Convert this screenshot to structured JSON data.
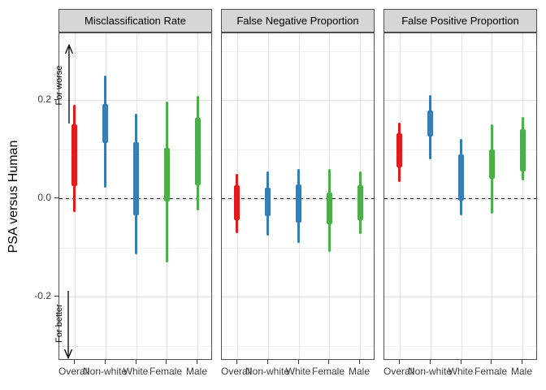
{
  "y_axis": {
    "title": "PSA versus Human",
    "ticks": [
      {
        "label": "0.2",
        "value": 0.2
      },
      {
        "label": "0.0",
        "value": 0.0
      },
      {
        "label": "-0.2",
        "value": -0.2
      }
    ]
  },
  "x_categories": [
    "Overall",
    "Non-white",
    "White",
    "Female",
    "Male"
  ],
  "colors": {
    "red": "#E41A1C",
    "blue": "#377EB8",
    "green": "#4DAF4A"
  },
  "chart_data": [
    {
      "type": "interval",
      "title": "Misclassification Rate",
      "ylabel": "PSA versus Human",
      "ylim": [
        -0.33,
        0.335
      ],
      "yticks": [
        0.2,
        0.0,
        -0.2
      ],
      "grid": true,
      "legend": "none",
      "zero_line": true,
      "annotations": {
        "worse": "For worse",
        "better": "For better"
      },
      "categories": [
        "Overall",
        "Non-white",
        "White",
        "Female",
        "Male"
      ],
      "series": [
        {
          "category": "Overall",
          "color": "#E41A1C",
          "outer": [
            -0.028,
            0.19
          ],
          "inner": [
            0.024,
            0.151
          ]
        },
        {
          "category": "Non-white",
          "color": "#377EB8",
          "outer": [
            0.021,
            0.249
          ],
          "inner": [
            0.112,
            0.192
          ]
        },
        {
          "category": "White",
          "color": "#377EB8",
          "outer": [
            -0.115,
            0.172
          ],
          "inner": [
            -0.035,
            0.114
          ]
        },
        {
          "category": "Female",
          "color": "#4DAF4A",
          "outer": [
            -0.13,
            0.197
          ],
          "inner": [
            -0.006,
            0.102
          ]
        },
        {
          "category": "Male",
          "color": "#4DAF4A",
          "outer": [
            -0.025,
            0.208
          ],
          "inner": [
            0.027,
            0.163
          ]
        }
      ]
    },
    {
      "type": "interval",
      "title": "False Negative Proportion",
      "ylabel": "PSA versus Human",
      "ylim": [
        -0.33,
        0.335
      ],
      "yticks": [
        0.2,
        0.0,
        -0.2
      ],
      "grid": true,
      "legend": "none",
      "zero_line": true,
      "categories": [
        "Overall",
        "Non-white",
        "White",
        "Female",
        "Male"
      ],
      "series": [
        {
          "category": "Overall",
          "color": "#E41A1C",
          "outer": [
            -0.071,
            0.049
          ],
          "inner": [
            -0.044,
            0.027
          ]
        },
        {
          "category": "Non-white",
          "color": "#377EB8",
          "outer": [
            -0.076,
            0.054
          ],
          "inner": [
            -0.036,
            0.022
          ]
        },
        {
          "category": "White",
          "color": "#377EB8",
          "outer": [
            -0.091,
            0.06
          ],
          "inner": [
            -0.05,
            0.029
          ]
        },
        {
          "category": "Female",
          "color": "#4DAF4A",
          "outer": [
            -0.11,
            0.059
          ],
          "inner": [
            -0.053,
            0.011
          ]
        },
        {
          "category": "Male",
          "color": "#4DAF4A",
          "outer": [
            -0.073,
            0.055
          ],
          "inner": [
            -0.044,
            0.027
          ]
        }
      ]
    },
    {
      "type": "interval",
      "title": "False Positive Proportion",
      "ylabel": "PSA versus Human",
      "ylim": [
        -0.33,
        0.335
      ],
      "yticks": [
        0.2,
        0.0,
        -0.2
      ],
      "grid": true,
      "legend": "none",
      "zero_line": true,
      "categories": [
        "Overall",
        "Non-white",
        "White",
        "Female",
        "Male"
      ],
      "series": [
        {
          "category": "Overall",
          "color": "#E41A1C",
          "outer": [
            0.033,
            0.154
          ],
          "inner": [
            0.062,
            0.132
          ]
        },
        {
          "category": "Non-white",
          "color": "#377EB8",
          "outer": [
            0.08,
            0.21
          ],
          "inner": [
            0.126,
            0.178
          ]
        },
        {
          "category": "White",
          "color": "#377EB8",
          "outer": [
            -0.035,
            0.121
          ],
          "inner": [
            -0.005,
            0.089
          ]
        },
        {
          "category": "Female",
          "color": "#4DAF4A",
          "outer": [
            -0.031,
            0.151
          ],
          "inner": [
            0.04,
            0.1
          ]
        },
        {
          "category": "Male",
          "color": "#4DAF4A",
          "outer": [
            0.037,
            0.166
          ],
          "inner": [
            0.054,
            0.141
          ]
        }
      ]
    }
  ]
}
